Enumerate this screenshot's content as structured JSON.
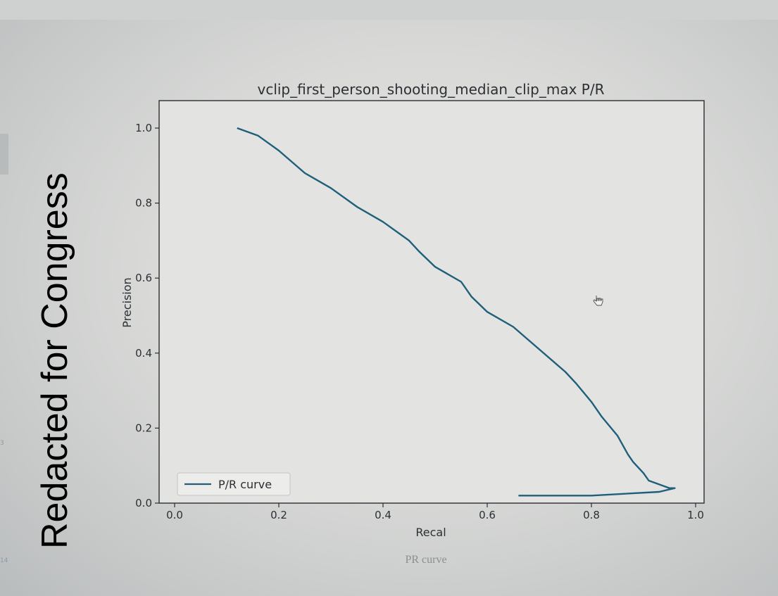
{
  "watermark": "Redacted for Congress",
  "caption": "PR curve",
  "side_marks": [
    "3",
    "14"
  ],
  "chart_data": {
    "type": "line",
    "title": "vclip_first_person_shooting_median_clip_max P/R",
    "xlabel": "Recal",
    "ylabel": "Precision",
    "xlim": [
      0.0,
      1.0
    ],
    "ylim": [
      0.0,
      1.05
    ],
    "xticks": [
      0.0,
      0.2,
      0.4,
      0.6,
      0.8,
      1.0
    ],
    "xtick_labels": [
      "0.0",
      "0.2",
      "0.4",
      "0.6",
      "0.8",
      "1.0"
    ],
    "yticks": [
      0.0,
      0.2,
      0.4,
      0.6,
      0.8,
      1.0
    ],
    "ytick_labels": [
      "0.0",
      "0.2",
      "0.4",
      "0.6",
      "0.8",
      "1.0"
    ],
    "grid": false,
    "legend_position": "lower-left",
    "line_color": "#1f5f7a",
    "series": [
      {
        "name": "P/R curve",
        "x": [
          0.12,
          0.16,
          0.2,
          0.25,
          0.3,
          0.35,
          0.4,
          0.45,
          0.47,
          0.5,
          0.55,
          0.57,
          0.6,
          0.65,
          0.7,
          0.75,
          0.77,
          0.8,
          0.82,
          0.85,
          0.87,
          0.88,
          0.9,
          0.91,
          0.93,
          0.95,
          0.96,
          0.93,
          0.8,
          0.66
        ],
        "y": [
          1.0,
          0.98,
          0.94,
          0.88,
          0.84,
          0.79,
          0.75,
          0.7,
          0.67,
          0.63,
          0.59,
          0.55,
          0.51,
          0.47,
          0.41,
          0.35,
          0.32,
          0.27,
          0.23,
          0.18,
          0.13,
          0.11,
          0.08,
          0.06,
          0.05,
          0.04,
          0.04,
          0.03,
          0.02,
          0.02
        ]
      }
    ]
  }
}
